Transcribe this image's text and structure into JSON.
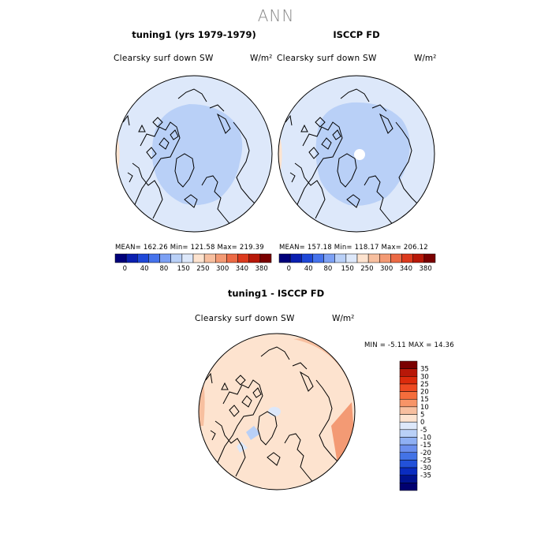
{
  "page_title": "ANN",
  "panels": [
    {
      "title": "tuning1 (yrs 1979-1979)",
      "variable": "Clearsky surf down SW",
      "units": "W/m²",
      "stats": "MEAN= 162.26 Min= 121.58 Max= 219.39"
    },
    {
      "title": "ISCCP FD",
      "variable": "Clearsky surf down SW",
      "units": "W/m²",
      "stats": "MEAN= 157.18 Min= 118.17 Max= 206.12"
    },
    {
      "title": "tuning1 - ISCCP FD",
      "variable": "Clearsky surf down SW",
      "units": "W/m²",
      "stats": "MIN = -5.11 MAX = 14.36"
    }
  ],
  "colors": {
    "land_outline": "#000000",
    "abs_cmap": [
      "#00007a",
      "#0a1fb0",
      "#1f48d8",
      "#4673ec",
      "#7ca0f4",
      "#b9d0f7",
      "#dde8fa",
      "#fde3cf",
      "#f7bf9f",
      "#f39a74",
      "#ec6a45",
      "#dc3a1d",
      "#b81808",
      "#7a0000"
    ],
    "diff_cmap": [
      "#7a0000",
      "#b81808",
      "#dc2b0c",
      "#ee4a22",
      "#f56d3c",
      "#f79467",
      "#f7bf9f",
      "#fde3cf",
      "#dde8fa",
      "#b9d0f7",
      "#8fb0f4",
      "#6b8fee",
      "#4373e6",
      "#2251d9",
      "#0a2cc0",
      "#00128f",
      "#000070"
    ]
  },
  "chart_data": [
    {
      "type": "heatmap",
      "title": "tuning1 (yrs 1979-1979)",
      "projection": "north-polar-stereographic",
      "variable": "Clearsky surf down SW",
      "units": "W/m²",
      "mean": 162.26,
      "min": 121.58,
      "max": 219.39,
      "colorbar_ticks": [
        "0",
        "40",
        "80",
        "150",
        "250",
        "300",
        "340",
        "380"
      ],
      "regions": [
        {
          "name": "outer-ring",
          "value": 160
        },
        {
          "name": "polar-cap",
          "value": 130
        },
        {
          "name": "marginal-warm-band",
          "value": 200
        }
      ]
    },
    {
      "type": "heatmap",
      "title": "ISCCP FD",
      "projection": "north-polar-stereographic",
      "variable": "Clearsky surf down SW",
      "units": "W/m²",
      "mean": 157.18,
      "min": 118.17,
      "max": 206.12,
      "colorbar_ticks": [
        "0",
        "40",
        "80",
        "150",
        "250",
        "300",
        "340",
        "380"
      ],
      "regions": [
        {
          "name": "outer-ring",
          "value": 155
        },
        {
          "name": "polar-cap",
          "value": 128
        },
        {
          "name": "pole-missing",
          "value": null
        }
      ]
    },
    {
      "type": "heatmap",
      "title": "tuning1 - ISCCP FD",
      "projection": "north-polar-stereographic",
      "variable": "Clearsky surf down SW",
      "units": "W/m²",
      "min": -5.11,
      "max": 14.36,
      "colorbar_ticks": [
        "35",
        "30",
        "25",
        "20",
        "15",
        "10",
        "5",
        "0",
        "-5",
        "-10",
        "-15",
        "-20",
        "-25",
        "-30",
        "-35"
      ],
      "regions": [
        {
          "name": "background",
          "value": 3
        },
        {
          "name": "eastern-arc",
          "value": 8
        },
        {
          "name": "greenland-patch",
          "value": -3
        }
      ]
    }
  ]
}
